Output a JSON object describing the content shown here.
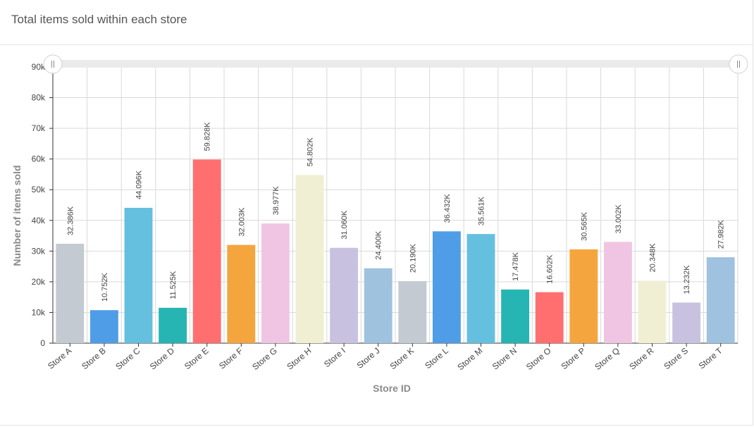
{
  "card": {
    "title": "Total items sold within each store"
  },
  "chart_data": {
    "type": "bar",
    "xlabel": "Store ID",
    "ylabel": "Number of items sold",
    "ylim": [
      0,
      90000
    ],
    "y_ticks": [
      0,
      10000,
      20000,
      30000,
      40000,
      50000,
      60000,
      70000,
      80000,
      90000
    ],
    "y_tick_labels": [
      "0",
      "10k",
      "20k",
      "30k",
      "40k",
      "50k",
      "60k",
      "70k",
      "80k",
      "90k"
    ],
    "grid": true,
    "scrollbar": "top",
    "categories": [
      "Store A",
      "Store B",
      "Store C",
      "Store D",
      "Store E",
      "Store F",
      "Store G",
      "Store H",
      "Store I",
      "Store J",
      "Store K",
      "Store L",
      "Store M",
      "Store N",
      "Store O",
      "Store P",
      "Store Q",
      "Store R",
      "Store S",
      "Store T"
    ],
    "values": [
      32386,
      10752,
      44096,
      11525,
      59828,
      32003,
      38977,
      54802,
      31060,
      24400,
      20190,
      36432,
      35561,
      17478,
      16602,
      30565,
      33002,
      20348,
      13232,
      27982
    ],
    "data_labels": [
      "32.386K",
      "10.752K",
      "44.096K",
      "11.525K",
      "59.828K",
      "32.003K",
      "38.977K",
      "54.802K",
      "31.060K",
      "24.400K",
      "20.190K",
      "36.432K",
      "35.561K",
      "17.478K",
      "16.602K",
      "30.565K",
      "33.002K",
      "20.348K",
      "13.232K",
      "27.982K"
    ],
    "colors": [
      "#c3cad2",
      "#4f9de6",
      "#64c0de",
      "#26b5b2",
      "#ff6f6f",
      "#f5a53d",
      "#f0c5e3",
      "#f1efd3",
      "#c8c2e0",
      "#9fc2de",
      "#c3cad2",
      "#4f9de6",
      "#64c0de",
      "#26b5b2",
      "#ff6f6f",
      "#f5a53d",
      "#f0c5e3",
      "#f1efd3",
      "#c8c2e0",
      "#9fc2de"
    ]
  }
}
